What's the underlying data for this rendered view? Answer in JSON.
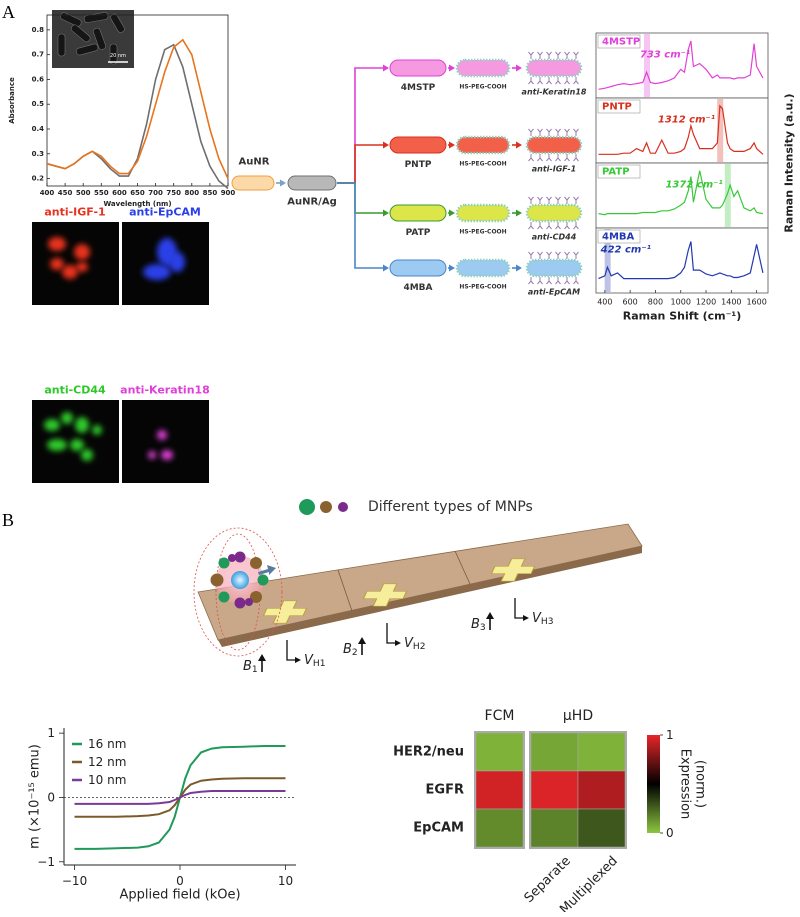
{
  "panel_labels": [
    "A",
    "B"
  ],
  "tem_scale_bar": "20 nm",
  "diagram_a": {
    "start": "AuNR",
    "intermediate": "AuNR/Ag",
    "branches": [
      {
        "reporter": "4MSTP",
        "linker": "HS-PEG-COOH",
        "antibody": "anti-Keratin18",
        "color": "#e040d8",
        "pill_color": "#f59ae0"
      },
      {
        "reporter": "PNTP",
        "linker": "HS-PEG-COOH",
        "antibody": "anti-IGF-1",
        "color": "#d8301e",
        "pill_color": "#f2604a"
      },
      {
        "reporter": "PATP",
        "linker": "HS-PEG-COOH",
        "antibody": "anti-CD44",
        "color": "#3a9a30",
        "pill_color": "#dce648"
      },
      {
        "reporter": "4MBA",
        "linker": "HS-PEG-COOH",
        "antibody": "anti-EpCAM",
        "color": "#4a86c8",
        "pill_color": "#9ccaf0"
      }
    ]
  },
  "fluorescence_images": [
    {
      "label": "anti-IGF-1",
      "color": "#e8321e"
    },
    {
      "label": "anti-EpCAM",
      "color": "#2a40e8"
    },
    {
      "label": "anti-CD44",
      "color": "#2ec82a"
    },
    {
      "label": "anti-Keratin18",
      "color": "#e040d8"
    }
  ],
  "diagram_b": {
    "legend": "Different types of MNPs",
    "sensors": [
      {
        "field": {
          "symbol": "B",
          "sub": "1"
        },
        "voltage": {
          "symbol": "V",
          "sub": "H1"
        }
      },
      {
        "field": {
          "symbol": "B",
          "sub": "2"
        },
        "voltage": {
          "symbol": "V",
          "sub": "H2"
        }
      },
      {
        "field": {
          "symbol": "B",
          "sub": "3"
        },
        "voltage": {
          "symbol": "V",
          "sub": "H3"
        }
      }
    ]
  },
  "chart_data": [
    {
      "type": "line",
      "xlabel": "Wavelength (nm)",
      "ylabel": "Absorbance",
      "x": [
        400,
        425,
        450,
        475,
        500,
        525,
        550,
        575,
        600,
        625,
        650,
        675,
        700,
        725,
        750,
        775,
        800,
        825,
        850,
        875,
        900
      ],
      "series": [
        {
          "color": "#6e6e6e",
          "values": [
            0.26,
            0.25,
            0.24,
            0.26,
            0.29,
            0.31,
            0.28,
            0.24,
            0.21,
            0.21,
            0.28,
            0.42,
            0.6,
            0.72,
            0.74,
            0.65,
            0.5,
            0.35,
            0.25,
            0.19,
            0.16
          ]
        },
        {
          "color": "#e8741e",
          "values": [
            0.26,
            0.25,
            0.24,
            0.26,
            0.29,
            0.31,
            0.29,
            0.25,
            0.22,
            0.22,
            0.27,
            0.37,
            0.5,
            0.63,
            0.73,
            0.76,
            0.7,
            0.55,
            0.4,
            0.28,
            0.2
          ]
        }
      ],
      "xlim": [
        400,
        900
      ],
      "ylim": [
        0.17,
        0.86
      ],
      "xticks": [
        400,
        450,
        500,
        550,
        600,
        650,
        700,
        750,
        800,
        850,
        900
      ],
      "yticks": [
        0.2,
        0.3,
        0.4,
        0.5,
        0.6,
        0.7,
        0.8
      ]
    },
    {
      "type": "spectra",
      "xlabel": "Raman Shift (cm⁻¹)",
      "ylabel": "Raman Intensity (a.u.)",
      "x": [
        350,
        400,
        420,
        450,
        500,
        550,
        600,
        650,
        700,
        730,
        760,
        800,
        850,
        900,
        950,
        1000,
        1030,
        1060,
        1080,
        1100,
        1150,
        1200,
        1250,
        1290,
        1310,
        1330,
        1370,
        1390,
        1420,
        1450,
        1500,
        1550,
        1580,
        1600,
        1650
      ],
      "series": [
        {
          "name": "4MSTP",
          "color": "#e040d8",
          "annotation": {
            "text": "733 cm⁻¹",
            "x": 733
          },
          "values": [
            0.1,
            0.12,
            0.13,
            0.15,
            0.18,
            0.2,
            0.18,
            0.2,
            0.22,
            0.4,
            0.22,
            0.2,
            0.22,
            0.25,
            0.3,
            0.45,
            0.4,
            0.8,
            0.95,
            0.5,
            0.55,
            0.45,
            0.3,
            0.35,
            0.3,
            0.3,
            0.3,
            0.3,
            0.28,
            0.3,
            0.3,
            0.35,
            0.9,
            0.5,
            0.3
          ]
        },
        {
          "name": "PNTP",
          "color": "#d8301e",
          "annotation": {
            "text": "1312 cm⁻¹",
            "x": 1312
          },
          "values": [
            0.1,
            0.1,
            0.1,
            0.1,
            0.1,
            0.12,
            0.12,
            0.2,
            0.15,
            0.3,
            0.12,
            0.12,
            0.35,
            0.12,
            0.12,
            0.15,
            0.2,
            0.4,
            0.6,
            0.45,
            0.2,
            0.2,
            0.2,
            0.3,
            0.95,
            0.9,
            0.3,
            0.2,
            0.15,
            0.15,
            0.15,
            0.2,
            0.3,
            0.2,
            0.1
          ]
        },
        {
          "name": "PATP",
          "color": "#38c838",
          "annotation": {
            "text": "1372 cm⁻¹",
            "x": 1372
          },
          "values": [
            0.2,
            0.18,
            0.2,
            0.2,
            0.2,
            0.2,
            0.2,
            0.2,
            0.22,
            0.22,
            0.22,
            0.22,
            0.25,
            0.25,
            0.28,
            0.35,
            0.4,
            0.6,
            0.85,
            0.4,
            0.95,
            0.45,
            0.3,
            0.3,
            0.3,
            0.35,
            0.55,
            0.7,
            0.5,
            0.6,
            0.3,
            0.25,
            0.3,
            0.22,
            0.2
          ]
        },
        {
          "name": "4MBA",
          "color": "#2238b0",
          "annotation": {
            "text": "422 cm⁻¹",
            "x": 422
          },
          "values": [
            0.2,
            0.25,
            0.4,
            0.25,
            0.3,
            0.2,
            0.2,
            0.2,
            0.2,
            0.2,
            0.2,
            0.2,
            0.2,
            0.2,
            0.22,
            0.3,
            0.4,
            0.7,
            0.85,
            0.35,
            0.35,
            0.28,
            0.25,
            0.28,
            0.3,
            0.28,
            0.25,
            0.25,
            0.22,
            0.22,
            0.25,
            0.3,
            0.6,
            0.8,
            0.3
          ]
        }
      ],
      "xlim": [
        330,
        1690
      ],
      "ylim": [
        0,
        1
      ],
      "xticks": [
        400,
        600,
        800,
        1000,
        1200,
        1400,
        1600
      ]
    },
    {
      "type": "line",
      "xlabel": "Applied field (kOe)",
      "ylabel": "m (×10⁻¹⁵ emu)",
      "x": [
        -10,
        -8,
        -6,
        -4,
        -3,
        -2,
        -1,
        -0.5,
        0,
        0.5,
        1,
        2,
        3,
        4,
        6,
        8,
        10
      ],
      "series": [
        {
          "name": "16 nm",
          "color": "#1f9a5a",
          "values": [
            -0.8,
            -0.8,
            -0.79,
            -0.78,
            -0.76,
            -0.7,
            -0.5,
            -0.3,
            0,
            0.3,
            0.5,
            0.7,
            0.76,
            0.78,
            0.79,
            0.8,
            0.8
          ]
        },
        {
          "name": "12 nm",
          "color": "#7a5a2a",
          "values": [
            -0.3,
            -0.3,
            -0.3,
            -0.29,
            -0.28,
            -0.26,
            -0.2,
            -0.12,
            0,
            0.12,
            0.2,
            0.26,
            0.28,
            0.29,
            0.3,
            0.3,
            0.3
          ]
        },
        {
          "name": "10 nm",
          "color": "#7a3a9a",
          "values": [
            -0.1,
            -0.1,
            -0.1,
            -0.1,
            -0.1,
            -0.09,
            -0.07,
            -0.04,
            0,
            0.04,
            0.07,
            0.09,
            0.1,
            0.1,
            0.1,
            0.1,
            0.1
          ]
        }
      ],
      "xlim": [
        -11,
        11
      ],
      "ylim": [
        -1.05,
        1.08
      ],
      "xticks": [
        {
          "value": -10,
          "label": "−10"
        },
        0,
        10
      ],
      "yticks": [
        {
          "value": -1,
          "label": "−1"
        },
        0,
        1
      ],
      "hline": 0,
      "legend": "upper left"
    },
    {
      "type": "heatmap",
      "rows": [
        "HER2/neu",
        "EGFR",
        "EpCAM"
      ],
      "column_groups": [
        {
          "name": "FCM",
          "columns": [
            null
          ]
        },
        {
          "name": "μHD",
          "columns": [
            "Separate",
            "Multiplexed"
          ]
        }
      ],
      "values": [
        [
          0.05,
          0.08,
          0.05
        ],
        [
          0.95,
          0.97,
          0.88
        ],
        [
          0.15,
          0.17,
          0.28
        ]
      ],
      "colorbar": {
        "lim": [
          0,
          1
        ],
        "ticks": [
          0,
          1
        ],
        "label": [
          "Expression",
          "(norm.)"
        ],
        "colors": [
          "#8dc63f",
          "#000000",
          "#e8262a"
        ]
      }
    }
  ]
}
